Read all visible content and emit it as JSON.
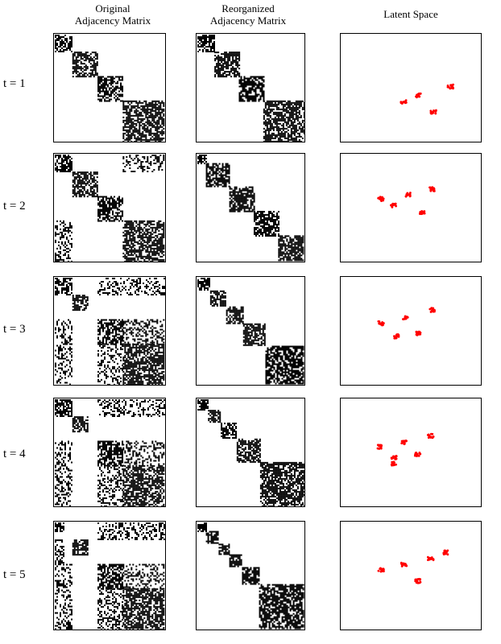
{
  "columns": {
    "original": [
      "Original",
      "Adjacency Matrix"
    ],
    "reorganized": [
      "Reorganized",
      "Adjacency Matrix"
    ],
    "latent": [
      "Latent Space"
    ]
  },
  "rows": [
    {
      "label": "t = 1",
      "original_blocks": [
        [
          0,
          0.16
        ],
        [
          0.16,
          0.39
        ],
        [
          0.39,
          0.62
        ],
        [
          0.62,
          1.0
        ]
      ],
      "original_offdiag": [],
      "reorganized_blocks": [
        [
          0,
          0.16
        ],
        [
          0.16,
          0.39
        ],
        [
          0.39,
          0.62
        ],
        [
          0.62,
          1.0
        ]
      ],
      "reorganized_dense": true,
      "latent_clusters": [
        [
          0.45,
          0.63
        ],
        [
          0.55,
          0.57
        ],
        [
          0.66,
          0.72
        ],
        [
          0.78,
          0.49
        ]
      ]
    },
    {
      "label": "t = 2",
      "original_blocks": [
        [
          0,
          0.16
        ],
        [
          0.16,
          0.39
        ],
        [
          0.39,
          0.62
        ],
        [
          0.62,
          1.0
        ]
      ],
      "original_offdiag": [
        [
          0,
          0.16,
          0.62,
          1.0
        ],
        [
          0.62,
          1.0,
          0,
          0.16
        ]
      ],
      "reorganized_blocks": [
        [
          0,
          0.08
        ],
        [
          0.08,
          0.3
        ],
        [
          0.3,
          0.53
        ],
        [
          0.53,
          0.76
        ],
        [
          0.76,
          1.0
        ]
      ],
      "reorganized_dense": true,
      "latent_clusters": [
        [
          0.29,
          0.42
        ],
        [
          0.38,
          0.48
        ],
        [
          0.48,
          0.38
        ],
        [
          0.58,
          0.54
        ],
        [
          0.65,
          0.33
        ]
      ]
    },
    {
      "label": "t = 3",
      "original_blocks": [
        [
          0,
          0.16
        ],
        [
          0.16,
          0.3
        ],
        [
          0.39,
          0.62
        ],
        [
          0.62,
          1.0
        ]
      ],
      "original_offdiag": [
        [
          0,
          0.16,
          0.39,
          1.0
        ],
        [
          0.39,
          1.0,
          0,
          0.16
        ],
        [
          0.39,
          0.62,
          0.62,
          1.0
        ],
        [
          0.62,
          1.0,
          0.39,
          0.62
        ]
      ],
      "reorganized_blocks": [
        [
          0,
          0.12
        ],
        [
          0.12,
          0.27
        ],
        [
          0.27,
          0.43
        ],
        [
          0.43,
          0.64
        ],
        [
          0.64,
          1.0
        ]
      ],
      "reorganized_dense": true,
      "latent_clusters": [
        [
          0.29,
          0.43
        ],
        [
          0.4,
          0.55
        ],
        [
          0.46,
          0.38
        ],
        [
          0.55,
          0.52
        ],
        [
          0.65,
          0.31
        ]
      ]
    },
    {
      "label": "t = 4",
      "original_blocks": [
        [
          0,
          0.16
        ],
        [
          0.16,
          0.3
        ],
        [
          0.39,
          0.62
        ],
        [
          0.62,
          1.0
        ]
      ],
      "original_offdiag": [
        [
          0,
          0.16,
          0.39,
          1.0
        ],
        [
          0.39,
          1.0,
          0,
          0.16
        ],
        [
          0.39,
          0.62,
          0.62,
          1.0
        ],
        [
          0.62,
          1.0,
          0.39,
          0.62
        ]
      ],
      "reorganized_blocks": [
        [
          0,
          0.1
        ],
        [
          0.1,
          0.22
        ],
        [
          0.22,
          0.37
        ],
        [
          0.37,
          0.59
        ],
        [
          0.59,
          1.0
        ]
      ],
      "reorganized_dense": true,
      "latent_clusters": [
        [
          0.28,
          0.45
        ],
        [
          0.38,
          0.55
        ],
        [
          0.38,
          0.6
        ],
        [
          0.45,
          0.41
        ],
        [
          0.55,
          0.52
        ],
        [
          0.64,
          0.35
        ]
      ]
    },
    {
      "label": "t = 5",
      "original_blocks": [
        [
          0,
          0.08
        ],
        [
          0.16,
          0.3
        ],
        [
          0.39,
          0.62
        ],
        [
          0.62,
          1.0
        ]
      ],
      "original_offdiag": [
        [
          0,
          0.16,
          0.39,
          1.0
        ],
        [
          0.39,
          1.0,
          0,
          0.16
        ],
        [
          0.39,
          0.62,
          0.62,
          1.0
        ],
        [
          0.62,
          1.0,
          0.39,
          0.62
        ],
        [
          0,
          0.08,
          0.16,
          0.39
        ]
      ],
      "reorganized_blocks": [
        [
          0,
          0.08
        ],
        [
          0.08,
          0.2
        ],
        [
          0.2,
          0.3
        ],
        [
          0.3,
          0.42
        ],
        [
          0.42,
          0.58
        ],
        [
          0.58,
          1.0
        ]
      ],
      "reorganized_dense": true,
      "latent_clusters": [
        [
          0.29,
          0.45
        ],
        [
          0.45,
          0.4
        ],
        [
          0.55,
          0.55
        ],
        [
          0.64,
          0.35
        ],
        [
          0.75,
          0.29
        ]
      ]
    }
  ],
  "colors": {
    "matrix": "#000000",
    "latent_points": "#ff0000",
    "frame": "#000000"
  }
}
